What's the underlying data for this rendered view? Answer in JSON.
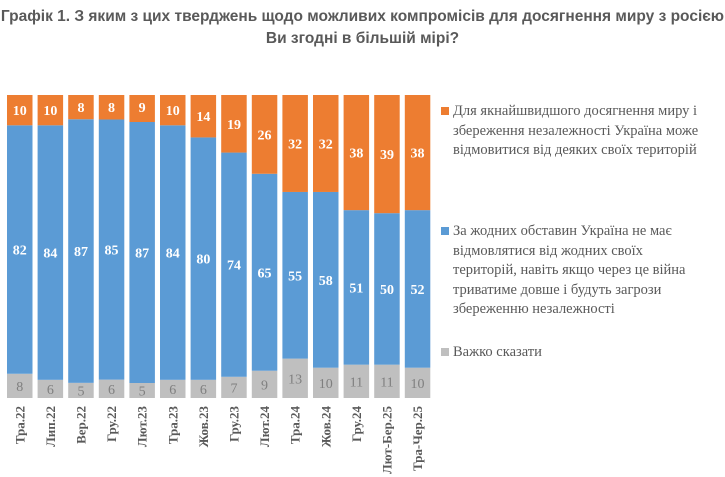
{
  "chart_data": {
    "type": "stacked-bar",
    "title": "Графік 1. З яким з цих тверджень щодо можливих компромісів для досягнення миру з росією Ви згодні в більшій мірі?",
    "categories": [
      "Тра.22",
      "Лип.22",
      "Вер.22",
      "Гру.22",
      "Лют.23",
      "Тра.23",
      "Жов.23",
      "Гру.23",
      "Лют.24",
      "Тра.24",
      "Жов.24",
      "Гру.24",
      "Лют-Бер.25",
      "Тра-Чер.25"
    ],
    "series": [
      {
        "name": "Важко сказати",
        "color": "#BFBFBF",
        "label_color": "#7F7F7F",
        "values": [
          8,
          6,
          5,
          6,
          5,
          6,
          6,
          7,
          9,
          13,
          10,
          11,
          11,
          10
        ]
      },
      {
        "name": "За жодних обставин Україна не має відмовлятися від жодних своїх територій, навіть якщо через це війна триватиме довше і будуть загрози збереженню незалежності",
        "color": "#5B9BD5",
        "label_color": "#FFFFFF",
        "values": [
          82,
          84,
          87,
          85,
          87,
          84,
          80,
          74,
          65,
          55,
          58,
          51,
          50,
          52
        ]
      },
      {
        "name": "Для якнайшвидшого досягнення миру і збереження незалежності Україна може відмовитися від деяких своїх територій",
        "color": "#ED7D31",
        "label_color": "#FFFFFF",
        "values": [
          10,
          10,
          8,
          8,
          9,
          10,
          14,
          19,
          26,
          32,
          32,
          38,
          39,
          38
        ]
      }
    ],
    "legend_order": [
      2,
      1,
      0
    ],
    "legend_position": "right",
    "grid": false
  }
}
